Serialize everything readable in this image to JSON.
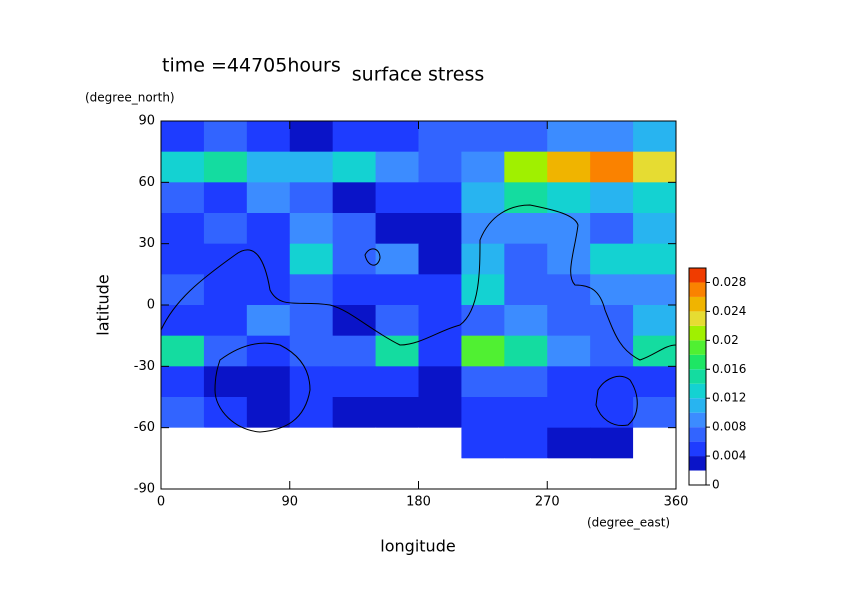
{
  "chart_data": {
    "type": "contour",
    "time_label": "time =44705hours",
    "title": "surface stress",
    "x_unit": "(degree_east)",
    "y_unit": "(degree_north)",
    "x_label": "longitude",
    "y_label": "latitude",
    "xlim": [
      0,
      360
    ],
    "ylim": [
      -90,
      90
    ],
    "xticks": [
      0,
      90,
      180,
      270,
      360
    ],
    "yticks": [
      -90,
      -60,
      -30,
      0,
      30,
      60,
      90
    ],
    "x": [
      15,
      45,
      75,
      105,
      135,
      165,
      195,
      225,
      255,
      285,
      315,
      345
    ],
    "y": [
      82.5,
      67.5,
      52.5,
      37.5,
      22.5,
      7.5,
      -7.5,
      -22.5,
      -37.5,
      -52.5,
      -67.5,
      -82.5
    ],
    "z": [
      [
        0.004,
        0.006,
        0.004,
        0.003,
        0.004,
        0.005,
        0.006,
        0.006,
        0.006,
        0.008,
        0.008,
        0.01
      ],
      [
        0.012,
        0.014,
        0.01,
        0.01,
        0.012,
        0.008,
        0.006,
        0.008,
        0.02,
        0.024,
        0.026,
        0.022
      ],
      [
        0.006,
        0.004,
        0.008,
        0.006,
        0.002,
        0.004,
        0.004,
        0.01,
        0.014,
        0.012,
        0.01,
        0.012
      ],
      [
        0.004,
        0.006,
        0.004,
        0.008,
        0.006,
        0.002,
        0.002,
        0.008,
        0.008,
        0.008,
        0.006,
        0.01
      ],
      [
        0.004,
        0.004,
        0.004,
        0.012,
        0.006,
        0.008,
        0.002,
        0.01,
        0.006,
        0.008,
        0.012,
        0.012
      ],
      [
        0.006,
        0.004,
        0.004,
        0.006,
        0.004,
        0.004,
        0.004,
        0.012,
        0.006,
        0.006,
        0.008,
        0.008
      ],
      [
        0.004,
        0.004,
        0.008,
        0.006,
        0.002,
        0.006,
        0.004,
        0.006,
        0.008,
        0.006,
        0.006,
        0.01
      ],
      [
        0.014,
        0.006,
        0.004,
        0.006,
        0.006,
        0.014,
        0.004,
        0.018,
        0.014,
        0.008,
        0.006,
        0.014
      ],
      [
        0.004,
        0.002,
        0.002,
        0.004,
        0.004,
        0.004,
        0.002,
        0.006,
        0.006,
        0.004,
        0.004,
        0.004
      ],
      [
        0.006,
        0.004,
        0.002,
        0.004,
        0.002,
        0.002,
        0.002,
        0.004,
        0.004,
        0.004,
        0.004,
        0.006
      ],
      [
        0,
        0,
        0,
        0,
        0,
        0,
        0,
        0.004,
        0.004,
        0.002,
        0.002,
        0
      ],
      [
        0,
        0,
        0,
        0,
        0,
        0,
        0,
        0,
        0,
        0,
        0,
        0
      ]
    ],
    "colorbar": {
      "lim": [
        0,
        0.03
      ],
      "ticks": [
        0,
        0.004,
        0.008,
        0.012,
        0.016,
        0.02,
        0.024,
        0.028
      ],
      "levels": [
        0,
        0.002,
        0.004,
        0.006,
        0.008,
        0.01,
        0.012,
        0.014,
        0.016,
        0.018,
        0.02,
        0.022,
        0.024,
        0.026,
        0.028,
        0.03
      ],
      "colors": [
        "#ffffff",
        "#0a14c8",
        "#1e3cff",
        "#3264ff",
        "#3c8cff",
        "#28b4f0",
        "#14d2d2",
        "#14dca0",
        "#1ee664",
        "#50f032",
        "#a0f000",
        "#e6dc32",
        "#f0b400",
        "#fa8200",
        "#f03c00"
      ]
    }
  }
}
